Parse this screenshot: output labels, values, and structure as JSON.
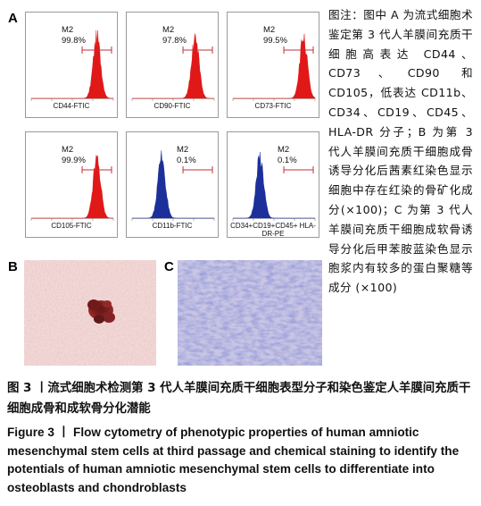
{
  "panel_letters": {
    "a": "A",
    "b": "B",
    "c": "C"
  },
  "flow_panels": [
    {
      "marker": "CD44-FTIC",
      "gate": "M2",
      "percent": "99.8%",
      "peak_pos": 0.8,
      "color": "#e01818"
    },
    {
      "marker": "CD90-FTIC",
      "gate": "M2",
      "percent": "97.8%",
      "peak_pos": 0.77,
      "color": "#e01818"
    },
    {
      "marker": "CD73-FTIC",
      "gate": "M2",
      "percent": "99.5%",
      "peak_pos": 0.86,
      "color": "#e01818"
    },
    {
      "marker": "CD105-FTIC",
      "gate": "M2",
      "percent": "99.9%",
      "peak_pos": 0.8,
      "color": "#e01818"
    },
    {
      "marker": "CD11b-FTIC",
      "gate": "M2",
      "percent": "0.1%",
      "peak_pos": 0.36,
      "color": "#1c2f9a"
    },
    {
      "marker": "CD34+CD19+CD45+ HLA-DR-PE",
      "gate": "M2",
      "percent": "0.1%",
      "peak_pos": 0.33,
      "color": "#1c2f9a"
    }
  ],
  "legend_cn": "图注：图中 A 为流式细胞术鉴定第 3 代人羊膜间充质干细胞高表达 CD44、CD73、CD90 和 CD105，低表达 CD11b、CD34、CD19、CD45、HLA-DR 分子；B 为第 3 代人羊膜间充质干细胞成骨诱导分化后茜素红染色显示细胞中存在红染的骨矿化成分(×100)；C 为第 3 代人羊膜间充质干细胞成软骨诱导分化后甲苯胺蓝染色显示胞浆内有较多的蛋白聚糖等成分 (×100)",
  "caption_cn": "图 3 丨流式细胞术检测第 3 代人羊膜间充质干细胞表型分子和染色鉴定人羊膜间充质干细胞成骨和成软骨分化潜能",
  "caption_en": "Figure 3 丨 Flow cytometry of phenotypic properties of human amniotic mesenchymal stem cells at third passage and chemical staining to identify the potentials of human amniotic mesenchymal stem cells to differentiate into osteoblasts and chondroblasts",
  "colors": {
    "positive_peak": "#e01818",
    "negative_peak": "#1c2f9a",
    "gate_line": "#c0303a"
  }
}
